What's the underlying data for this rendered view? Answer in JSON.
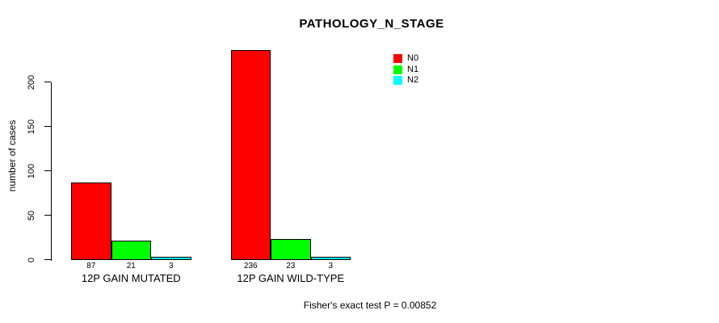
{
  "chart_data": {
    "type": "bar",
    "title": "PATHOLOGY_N_STAGE",
    "ylabel": "number of cases",
    "xlabel": "",
    "yticks": [
      0,
      50,
      100,
      150,
      200
    ],
    "ylim": [
      0,
      236
    ],
    "grid": false,
    "categories": [
      "12P GAIN MUTATED",
      "12P GAIN WILD-TYPE"
    ],
    "series": [
      {
        "name": "N0",
        "color": "#ff0000",
        "values": [
          87,
          236
        ]
      },
      {
        "name": "N1",
        "color": "#00ff00",
        "values": [
          21,
          23
        ]
      },
      {
        "name": "N2",
        "color": "#00ffff",
        "values": [
          3,
          3
        ]
      }
    ],
    "bar_value_labels_shown": true,
    "legend": {
      "position": "top-right",
      "entries": [
        "N0",
        "N1",
        "N2"
      ]
    },
    "annotation": "Fisher's exact test P = 0.00852"
  }
}
